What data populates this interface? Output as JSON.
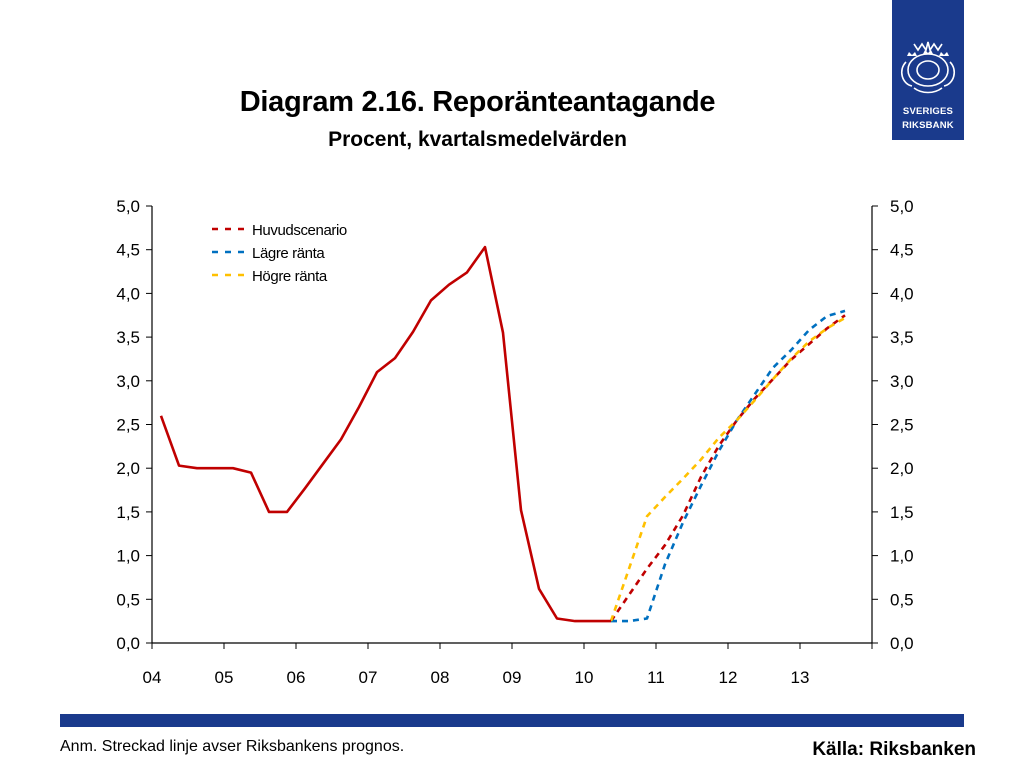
{
  "title": "Diagram 2.16. Reporänteantagande",
  "subtitle": "Procent, kvartalsmedelvärden",
  "logo": {
    "line1": "SVERIGES",
    "line2": "RIKSBANK"
  },
  "footnote": "Anm. Streckad linje avser Riksbankens prognos.",
  "source": "Källa: Riksbanken",
  "colors": {
    "brand": "#1a3a8c",
    "main": "#c00000",
    "lower": "#0070c0",
    "higher": "#ffc000"
  },
  "chart_data": {
    "type": "line",
    "ylim": [
      0,
      5
    ],
    "yticks": [
      "0,0",
      "0,5",
      "1,0",
      "1,5",
      "2,0",
      "2,5",
      "3,0",
      "3,5",
      "4,0",
      "4,5",
      "5,0"
    ],
    "xlim": [
      2004,
      2014
    ],
    "xtick_labels": [
      "04",
      "05",
      "06",
      "07",
      "08",
      "09",
      "10",
      "11",
      "12",
      "13"
    ],
    "grid": false,
    "legend_position": "top-left",
    "series": [
      {
        "key": "outcome",
        "color": "#c00000",
        "dashed": false,
        "x": [
          2004.125,
          2004.375,
          2004.625,
          2004.875,
          2005.125,
          2005.375,
          2005.625,
          2005.875,
          2006.125,
          2006.375,
          2006.625,
          2006.875,
          2007.125,
          2007.375,
          2007.625,
          2007.875,
          2008.125,
          2008.375,
          2008.625,
          2008.875,
          2009.125,
          2009.375,
          2009.625,
          2009.875,
          2010.125,
          2010.375
        ],
        "y": [
          2.6,
          2.03,
          2.0,
          2.0,
          2.0,
          1.95,
          1.5,
          1.5,
          1.77,
          2.05,
          2.33,
          2.7,
          3.1,
          3.26,
          3.56,
          3.92,
          4.1,
          4.24,
          4.53,
          3.55,
          1.52,
          0.62,
          0.28,
          0.25,
          0.25,
          0.25
        ]
      },
      {
        "name": "Huvudscenario",
        "color": "#c00000",
        "dashed": true,
        "x": [
          2010.375,
          2010.625,
          2010.875,
          2011.125,
          2011.375,
          2011.625,
          2011.875,
          2012.125,
          2012.375,
          2012.625,
          2012.875,
          2013.125,
          2013.375,
          2013.625
        ],
        "y": [
          0.25,
          0.55,
          0.85,
          1.12,
          1.46,
          1.9,
          2.26,
          2.55,
          2.8,
          3.02,
          3.24,
          3.42,
          3.6,
          3.75
        ]
      },
      {
        "name": "Lägre ränta",
        "color": "#0070c0",
        "dashed": true,
        "x": [
          2010.375,
          2010.625,
          2010.875,
          2011.125,
          2011.375,
          2011.625,
          2011.875,
          2012.125,
          2012.375,
          2012.625,
          2012.875,
          2013.125,
          2013.375,
          2013.625
        ],
        "y": [
          0.25,
          0.25,
          0.28,
          0.9,
          1.38,
          1.8,
          2.2,
          2.55,
          2.85,
          3.15,
          3.35,
          3.58,
          3.74,
          3.8
        ]
      },
      {
        "name": "Högre ränta",
        "color": "#ffc000",
        "dashed": true,
        "x": [
          2010.375,
          2010.625,
          2010.875,
          2011.125,
          2011.375,
          2011.625,
          2011.875,
          2012.125,
          2012.375,
          2012.625,
          2012.875,
          2013.125,
          2013.375,
          2013.625
        ],
        "y": [
          0.25,
          0.85,
          1.45,
          1.67,
          1.88,
          2.1,
          2.35,
          2.55,
          2.78,
          3.02,
          3.25,
          3.45,
          3.6,
          3.72
        ]
      }
    ]
  }
}
